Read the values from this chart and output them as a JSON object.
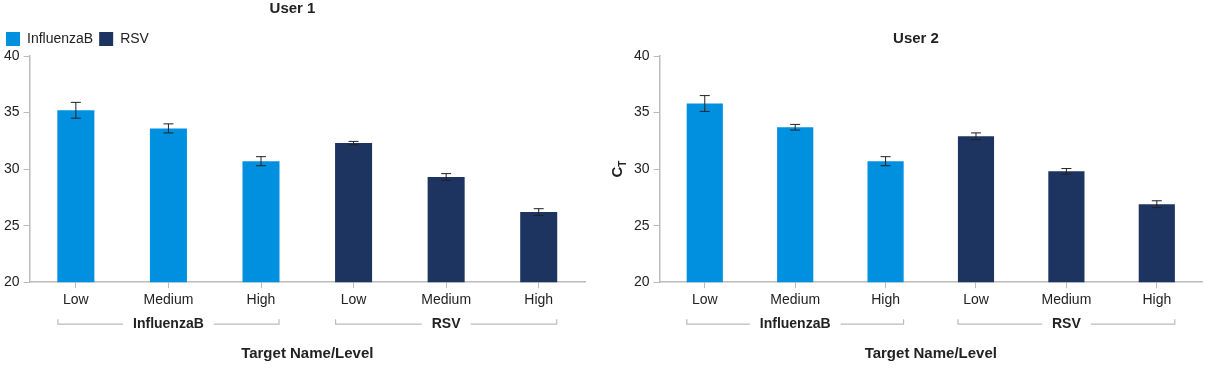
{
  "chart_data": [
    {
      "type": "bar",
      "title": "User 1",
      "xlabel": "Target Name/Level",
      "categories": [
        "Low",
        "Medium",
        "High",
        "Low",
        "Medium",
        "High"
      ],
      "series": [
        {
          "name": "InfluenzaB",
          "color": "#0090e0",
          "values": [
            35.2,
            33.6,
            30.7,
            null,
            null,
            null
          ],
          "errors": [
            0.7,
            0.4,
            0.4,
            null,
            null,
            null
          ]
        },
        {
          "name": "RSV",
          "color": "#1d3461",
          "values": [
            null,
            null,
            null,
            32.3,
            29.3,
            26.2
          ],
          "errors": [
            null,
            null,
            null,
            0.15,
            0.3,
            0.3
          ]
        }
      ],
      "ylim": [
        20,
        40
      ],
      "yticks": [
        20,
        25,
        30,
        35,
        40
      ],
      "grid": false,
      "legend": "top left",
      "annotations": [
        "InfluenzaB",
        "RSV"
      ]
    },
    {
      "type": "bar",
      "title": "User 2",
      "xlabel": "Target Name/Level",
      "ylabel": "C$_{T}$",
      "categories": [
        "Low",
        "Medium",
        "High",
        "Low",
        "Medium",
        "High"
      ],
      "series": [
        {
          "color": "#0090e0",
          "values": [
            35.8,
            33.7,
            30.7,
            null,
            null,
            null
          ],
          "errors": [
            0.7,
            0.25,
            0.4,
            null,
            null,
            null
          ]
        },
        {
          "color": "#1d3461",
          "values": [
            null,
            null,
            null,
            32.9,
            29.8,
            26.9
          ],
          "errors": [
            null,
            null,
            null,
            0.3,
            0.25,
            0.3
          ]
        }
      ],
      "ylim": [
        20,
        40
      ],
      "yticks": [
        20,
        25,
        30,
        35,
        40
      ],
      "grid": false,
      "legend": false,
      "annotations": [
        "InfluenzaB",
        "RSV"
      ]
    }
  ]
}
